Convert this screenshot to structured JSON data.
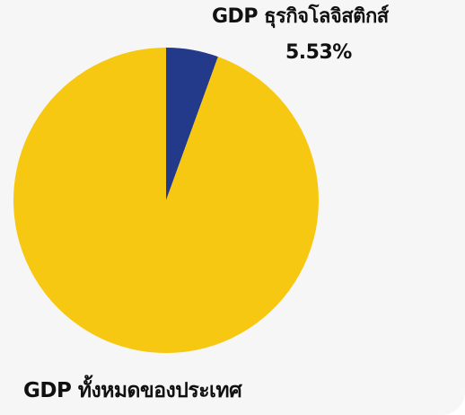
{
  "chart_data": {
    "type": "pie",
    "slices": [
      {
        "label": "GDP ธุรกิจโลจิสติกส์",
        "value": 5.53,
        "value_label": "5.53%",
        "color": "#233a8a"
      },
      {
        "label": "GDP ทั้งหมดของประเทศ",
        "value": 94.47,
        "color": "#f7c811"
      }
    ],
    "start_angle_deg": 0,
    "direction": "clockwise",
    "legend": "none"
  },
  "colors": {
    "background": "#f6f6f6",
    "text": "#111111"
  }
}
